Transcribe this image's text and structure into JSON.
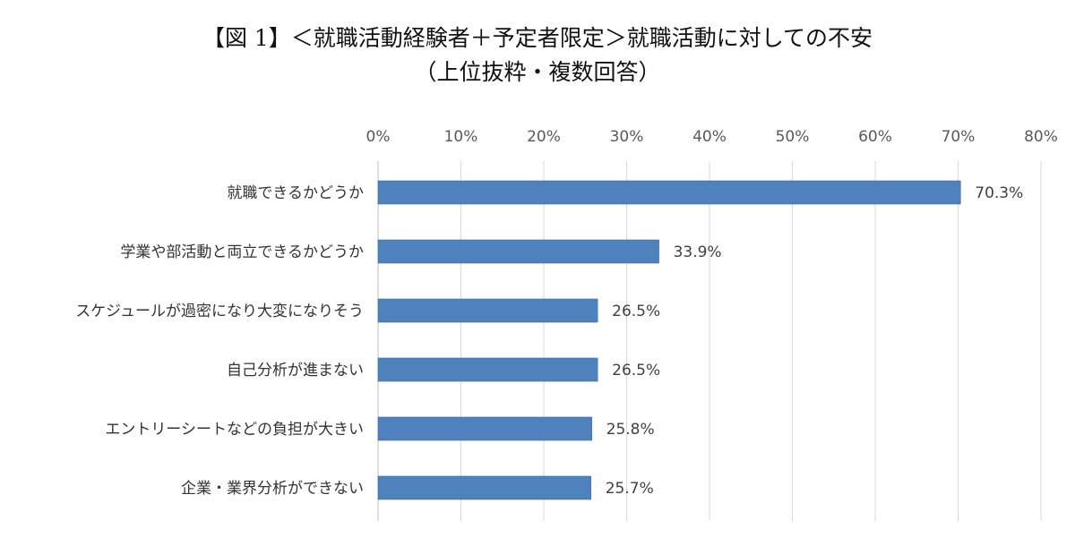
{
  "chart_data": {
    "type": "bar",
    "orientation": "horizontal",
    "title": "【図 1】＜就職活動経験者＋予定者限定＞就職活動に対しての不安",
    "subtitle": "（上位抜粋・複数回答）",
    "categories": [
      "就職できるかどうか",
      "学業や部活動と両立できるかどうか",
      "スケジュールが過密になり大変になりそう",
      "自己分析が進まない",
      "エントリーシートなどの負担が大きい",
      "企業・業界分析ができない"
    ],
    "values": [
      70.3,
      33.9,
      26.5,
      26.5,
      25.8,
      25.7
    ],
    "data_labels": [
      "70.3%",
      "33.9%",
      "26.5%",
      "26.5%",
      "25.8%",
      "25.7%"
    ],
    "xlim": [
      0,
      80
    ],
    "x_ticks": [
      0,
      10,
      20,
      30,
      40,
      50,
      60,
      70,
      80
    ],
    "x_tick_labels": [
      "0%",
      "10%",
      "20%",
      "30%",
      "40%",
      "50%",
      "60%",
      "70%",
      "80%"
    ],
    "xlabel": "",
    "ylabel": "",
    "axis_position": "top",
    "grid": true,
    "bar_color": "#4f81bd"
  }
}
